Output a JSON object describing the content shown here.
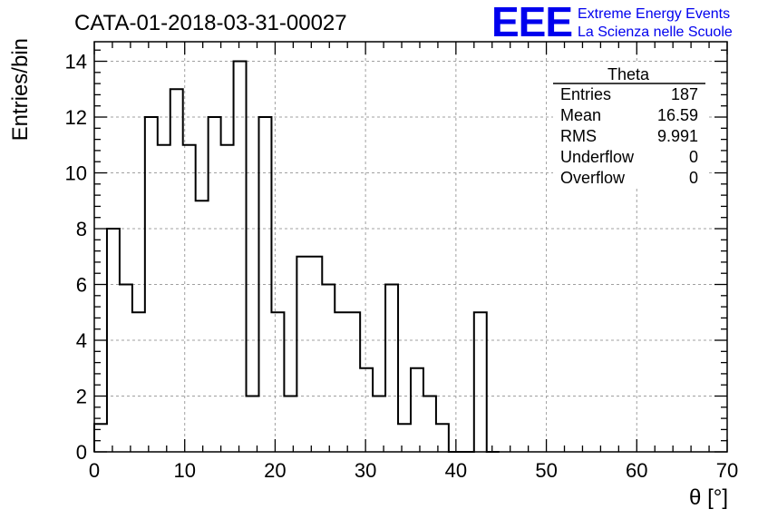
{
  "chart_data": {
    "type": "bar",
    "style": "step-histogram",
    "title": "CATA-01-2018-03-31-00027",
    "xlabel": "θ [°]",
    "ylabel": "Entries/bin",
    "xlim": [
      0,
      70
    ],
    "ylim": [
      0,
      14.7
    ],
    "grid": true,
    "bin_width": 1.4,
    "bin_edges_start": 0,
    "values": [
      1,
      8,
      6,
      5,
      12,
      11,
      13,
      11,
      9,
      12,
      11,
      14,
      2,
      12,
      5,
      2,
      7,
      7,
      6,
      5,
      5,
      3,
      2,
      6,
      1,
      3,
      2,
      1,
      0,
      0,
      5,
      0
    ],
    "x_ticks": [
      0,
      10,
      20,
      30,
      40,
      50,
      60,
      70
    ],
    "y_ticks": [
      0,
      2,
      4,
      6,
      8,
      10,
      12,
      14
    ],
    "stats_box": {
      "name": "Theta",
      "placement": "top-right",
      "rows": [
        {
          "label": "Entries",
          "value": "187"
        },
        {
          "label": "Mean",
          "value": "16.59"
        },
        {
          "label": "RMS",
          "value": "9.991"
        },
        {
          "label": "Underflow",
          "value": "0"
        },
        {
          "label": "Overflow",
          "value": "0"
        }
      ]
    },
    "line_color": "#000000"
  },
  "logo": {
    "mark": "EEE",
    "line1": "Extreme Energy Events",
    "line2": "La Scienza nelle Scuole",
    "color": "#0000ee"
  }
}
